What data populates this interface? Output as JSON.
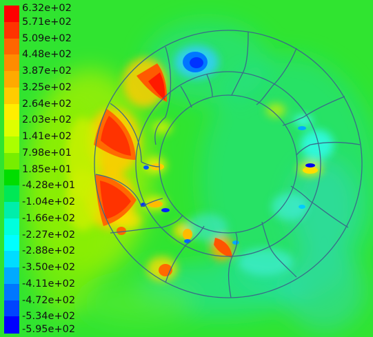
{
  "chart_data": {
    "type": "heatmap",
    "title": "",
    "colorbar": {
      "ticks": [
        "6.32e+02",
        "5.71e+02",
        "5.09e+02",
        "4.48e+02",
        "3.87e+02",
        "3.25e+02",
        "2.64e+02",
        "2.03e+02",
        "1.41e+02",
        "7.98e+01",
        "1.85e+01",
        "-4.28e+01",
        "-1.04e+02",
        "-1.66e+02",
        "-2.27e+02",
        "-2.88e+02",
        "-3.50e+02",
        "-4.11e+02",
        "-4.72e+02",
        "-5.34e+02",
        "-5.95e+02"
      ],
      "colors": [
        "#ff0000",
        "#ff3300",
        "#ff6600",
        "#ff8c00",
        "#ffaa00",
        "#ffcc00",
        "#ffee00",
        "#ddff00",
        "#aaff00",
        "#77ee00",
        "#00dd00",
        "#00e855",
        "#00eeaa",
        "#00ffdd",
        "#00ffff",
        "#00ddff",
        "#00aaff",
        "#0077ff",
        "#0044ff",
        "#0000ff"
      ],
      "vmin": -595,
      "vmax": 632
    },
    "background_color": "#33ee33"
  }
}
